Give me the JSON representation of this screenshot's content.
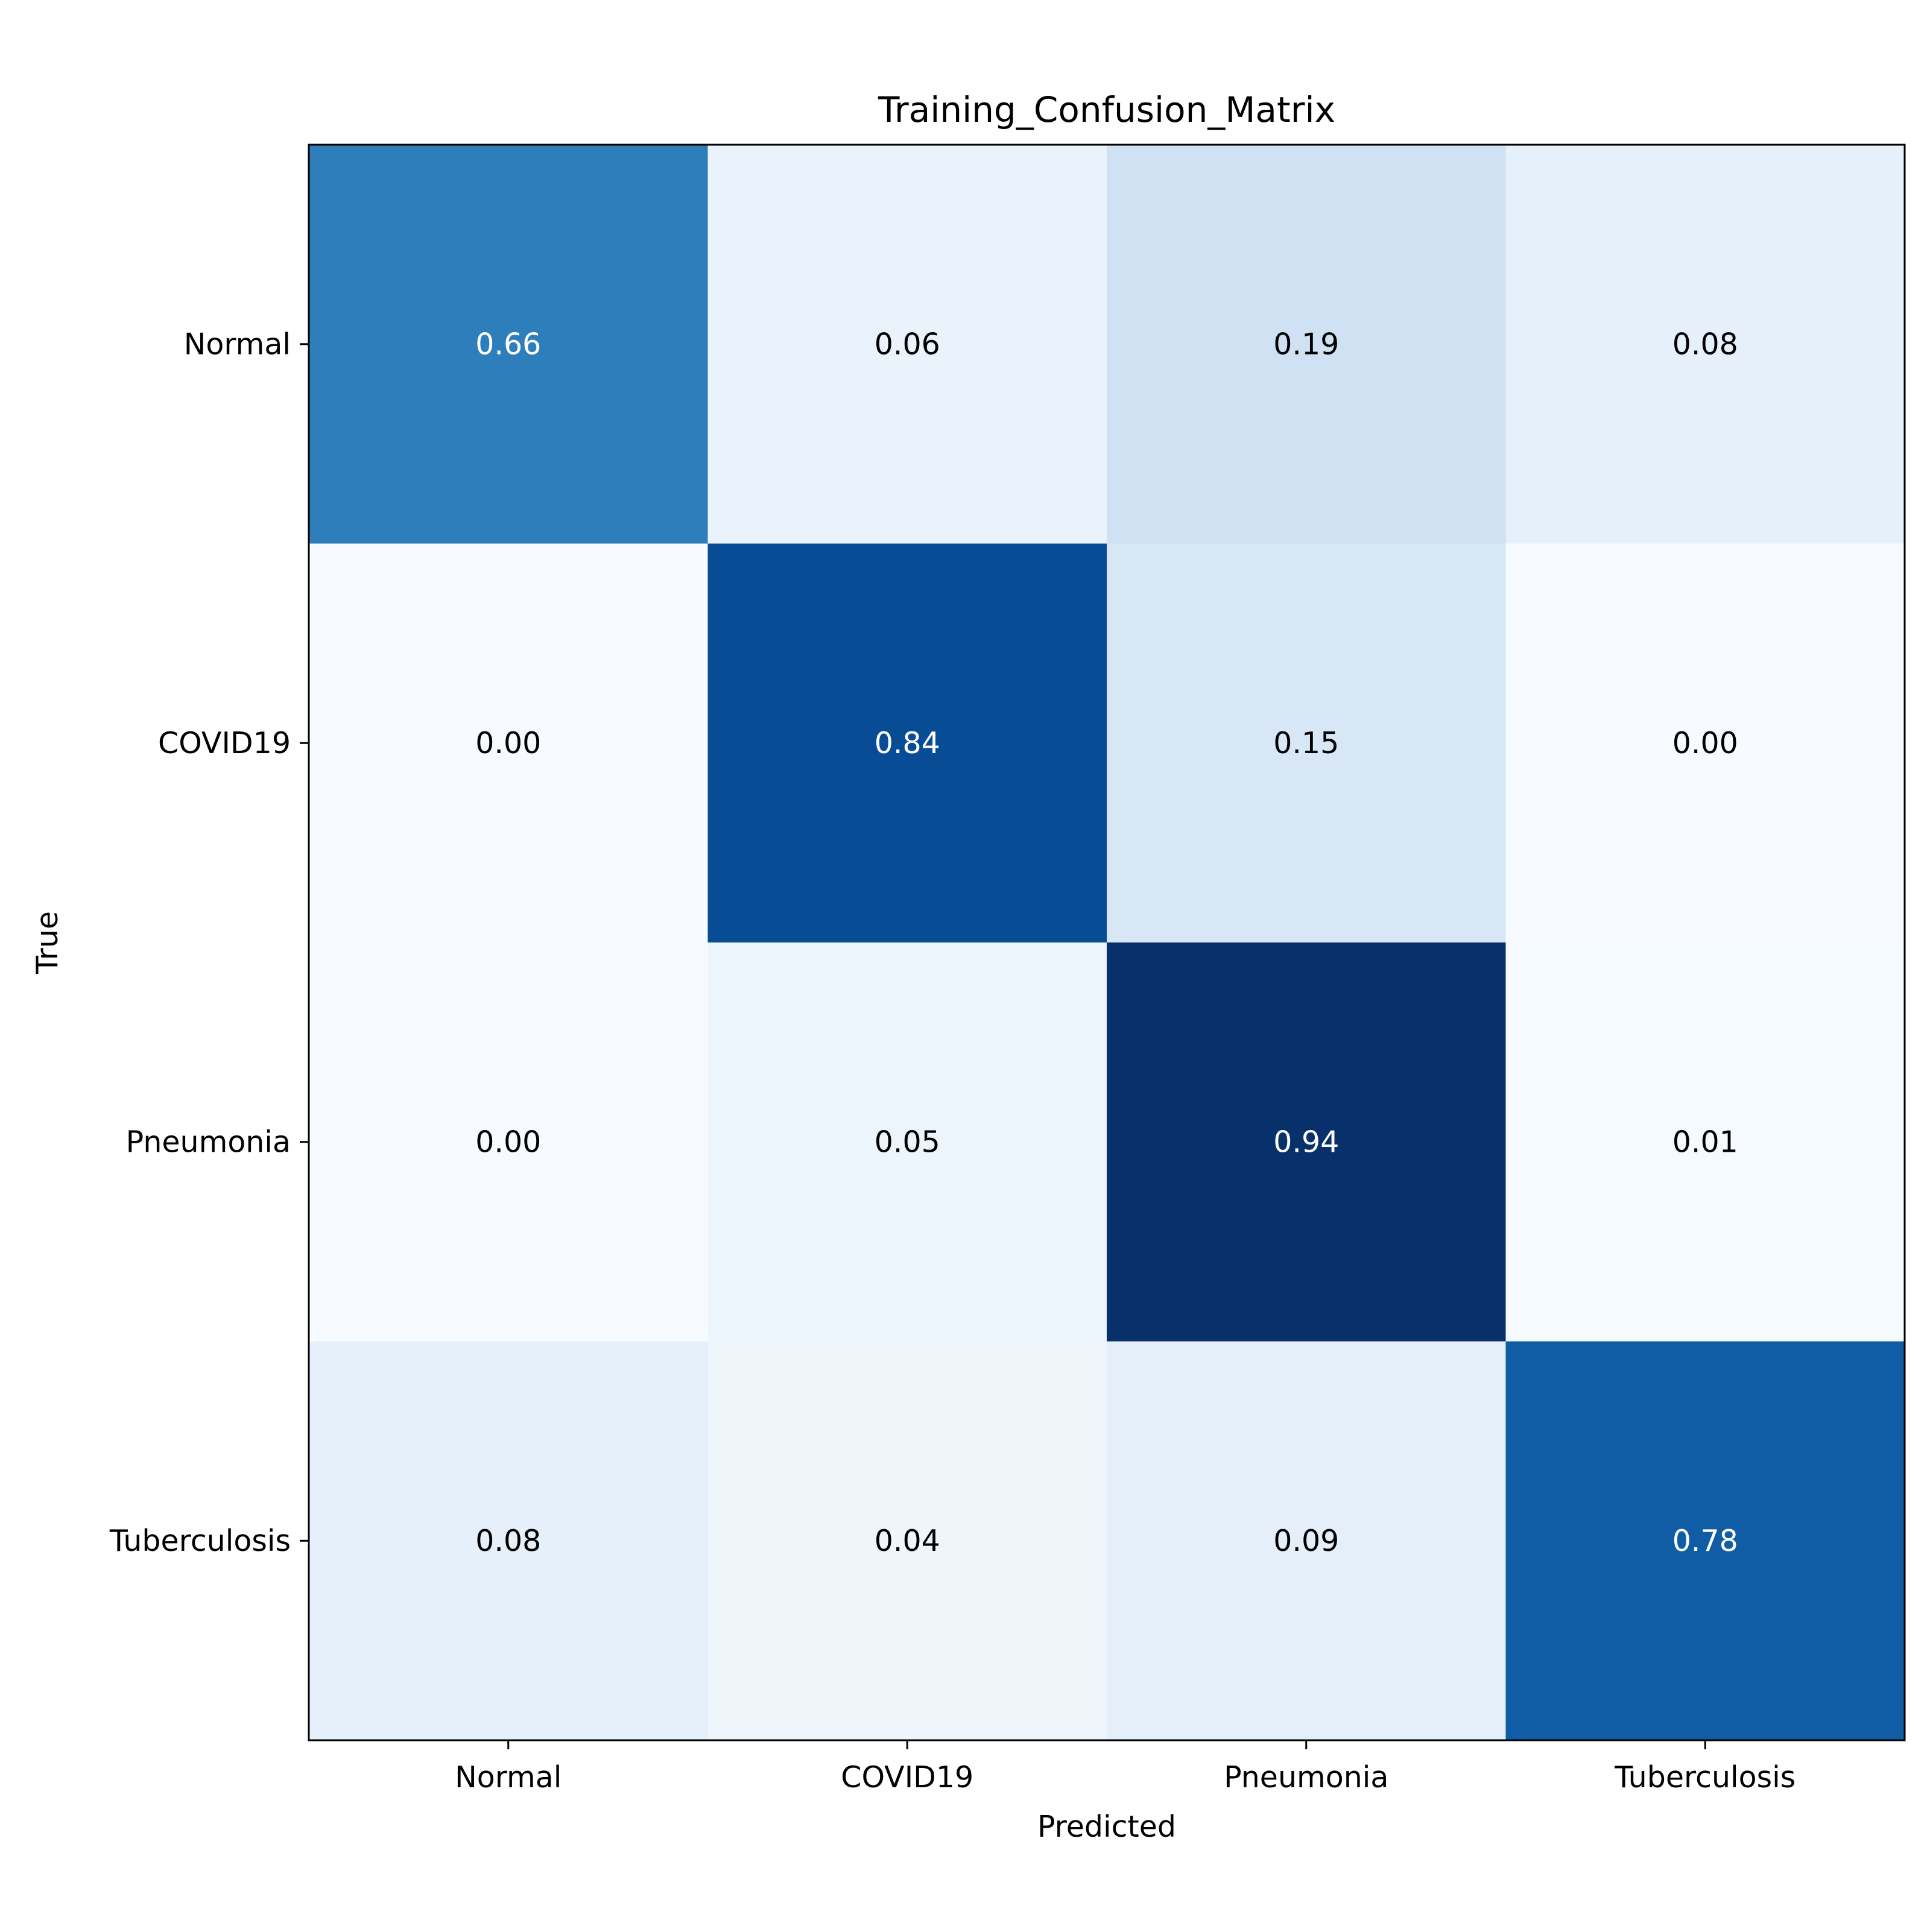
{
  "chart_data": {
    "type": "heatmap",
    "title": "Training_Confusion_Matrix",
    "xlabel": "Predicted",
    "ylabel": "True",
    "x_categories": [
      "Normal",
      "COVID19",
      "Pneumonia",
      "Tuberculosis"
    ],
    "y_categories": [
      "Normal",
      "COVID19",
      "Pneumonia",
      "Tuberculosis"
    ],
    "values": [
      [
        0.66,
        0.06,
        0.19,
        0.08
      ],
      [
        0.0,
        0.84,
        0.15,
        0.0
      ],
      [
        0.0,
        0.05,
        0.94,
        0.01
      ],
      [
        0.08,
        0.04,
        0.09,
        0.78
      ]
    ],
    "value_format": "0.00",
    "colormap": "Blues",
    "color_range": [
      0.0,
      0.94
    ],
    "grid": false,
    "legend": "none"
  }
}
